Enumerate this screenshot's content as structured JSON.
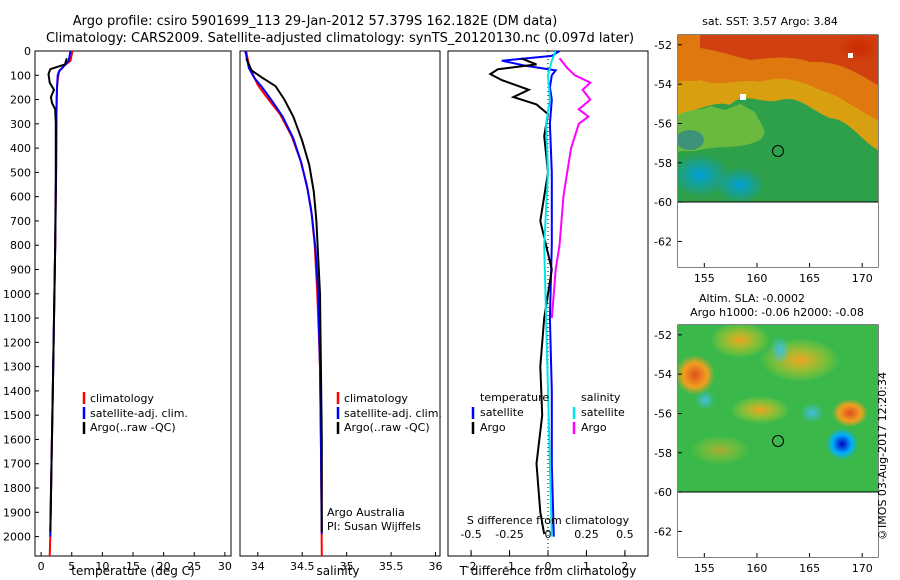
{
  "header": {
    "line1": "Argo profile: csiro 5901699_113 29-Jan-2012 57.379S 162.182E (DM data)",
    "line2": "Climatology: CARS2009. Satellite-adjusted climatology: synTS_20120130.nc (0.097d later)"
  },
  "footer_vertical": "©IMOS 03-Aug-2017 12:20:34",
  "colors": {
    "climatology": "#ff0000",
    "satellite": "#0000ff",
    "argo": "#000000",
    "sat_salinity": "#00e5e5",
    "argo_salinity": "#ff00ff"
  },
  "chart_data": [
    {
      "type": "line",
      "id": "temperature",
      "xlabel": "temperature (deg C)",
      "ylabel": "",
      "xlim": [
        -1,
        31
      ],
      "ylim": [
        2080,
        0
      ],
      "xticks": [
        0,
        5,
        10,
        15,
        20,
        25,
        30
      ],
      "yticks": [
        0,
        100,
        200,
        300,
        400,
        500,
        600,
        700,
        800,
        900,
        1000,
        1100,
        1200,
        1300,
        1400,
        1500,
        1600,
        1700,
        1800,
        1900,
        2000
      ],
      "legend": [
        "climatology",
        "satellite-adj. clim.",
        "Argo(..raw -QC)"
      ],
      "series": [
        {
          "name": "climatology",
          "color": "#ff0000",
          "points": [
            [
              5.1,
              0
            ],
            [
              4.8,
              40
            ],
            [
              3.8,
              60
            ],
            [
              3.0,
              80
            ],
            [
              2.8,
              100
            ],
            [
              2.6,
              150
            ],
            [
              2.55,
              200
            ],
            [
              2.5,
              300
            ],
            [
              2.45,
              500
            ],
            [
              2.3,
              800
            ],
            [
              2.1,
              1100
            ],
            [
              1.9,
              1400
            ],
            [
              1.7,
              1700
            ],
            [
              1.5,
              2000
            ],
            [
              1.4,
              2080
            ]
          ]
        },
        {
          "name": "satellite-adj. clim.",
          "color": "#0000ff",
          "points": [
            [
              4.8,
              0
            ],
            [
              4.5,
              40
            ],
            [
              3.6,
              65
            ],
            [
              2.9,
              85
            ],
            [
              2.7,
              100
            ],
            [
              2.6,
              150
            ],
            [
              2.5,
              250
            ],
            [
              2.45,
              500
            ],
            [
              2.3,
              800
            ],
            [
              2.1,
              1100
            ],
            [
              1.9,
              1400
            ],
            [
              1.7,
              1700
            ],
            [
              1.5,
              2000
            ]
          ]
        },
        {
          "name": "Argo(..raw -QC)",
          "color": "#000000",
          "points": [
            [
              4.2,
              30
            ],
            [
              3.9,
              55
            ],
            [
              1.5,
              75
            ],
            [
              1.2,
              95
            ],
            [
              1.4,
              130
            ],
            [
              2.1,
              160
            ],
            [
              1.6,
              190
            ],
            [
              1.8,
              215
            ],
            [
              2.3,
              240
            ],
            [
              2.4,
              300
            ],
            [
              2.4,
              500
            ],
            [
              2.3,
              800
            ],
            [
              2.1,
              1100
            ],
            [
              1.9,
              1400
            ],
            [
              1.7,
              1700
            ],
            [
              1.5,
              1980
            ]
          ]
        }
      ]
    },
    {
      "type": "line",
      "id": "salinity",
      "xlabel": "salinity",
      "ylabel": "",
      "xlim": [
        33.8,
        36.05
      ],
      "ylim": [
        2080,
        0
      ],
      "xticks": [
        34,
        34.5,
        35,
        35.5,
        36
      ],
      "legend": [
        "climatology",
        "satellite-adj. clim.",
        "Argo(..raw -QC)"
      ],
      "annotation": [
        "Argo Australia",
        "PI: Susan Wijffels"
      ],
      "series": [
        {
          "name": "climatology",
          "color": "#ff0000",
          "points": [
            [
              33.87,
              0
            ],
            [
              33.9,
              60
            ],
            [
              33.95,
              100
            ],
            [
              34.0,
              140
            ],
            [
              34.1,
              190
            ],
            [
              34.25,
              260
            ],
            [
              34.38,
              350
            ],
            [
              34.48,
              450
            ],
            [
              34.55,
              550
            ],
            [
              34.6,
              650
            ],
            [
              34.64,
              800
            ],
            [
              34.67,
              1000
            ],
            [
              34.7,
              1300
            ],
            [
              34.71,
              1600
            ],
            [
              34.72,
              2080
            ]
          ]
        },
        {
          "name": "satellite-adj. clim.",
          "color": "#0000ff",
          "points": [
            [
              33.86,
              0
            ],
            [
              33.9,
              70
            ],
            [
              33.96,
              110
            ],
            [
              34.05,
              150
            ],
            [
              34.15,
              200
            ],
            [
              34.28,
              270
            ],
            [
              34.4,
              360
            ],
            [
              34.49,
              460
            ],
            [
              34.56,
              570
            ],
            [
              34.61,
              680
            ],
            [
              34.65,
              820
            ],
            [
              34.68,
              1000
            ],
            [
              34.7,
              1300
            ],
            [
              34.71,
              1600
            ],
            [
              34.72,
              1990
            ]
          ]
        },
        {
          "name": "Argo(..raw -QC)",
          "color": "#000000",
          "points": [
            [
              33.87,
              30
            ],
            [
              33.93,
              80
            ],
            [
              34.05,
              110
            ],
            [
              34.2,
              145
            ],
            [
              34.3,
              200
            ],
            [
              34.4,
              270
            ],
            [
              34.5,
              370
            ],
            [
              34.58,
              470
            ],
            [
              34.63,
              580
            ],
            [
              34.66,
              700
            ],
            [
              34.68,
              850
            ],
            [
              34.7,
              1000
            ],
            [
              34.71,
              1300
            ],
            [
              34.72,
              1600
            ],
            [
              34.72,
              1980
            ]
          ]
        }
      ]
    },
    {
      "type": "line",
      "id": "differences",
      "xlabel": "T difference from climatology",
      "xlabel_top": "S difference from climatology",
      "xlim": [
        -2.6,
        2.6
      ],
      "ylim": [
        2080,
        0
      ],
      "xticks": [
        -2,
        -1,
        0,
        1,
        2
      ],
      "xticks_labels": [
        "-2",
        "-1",
        "0",
        "1",
        "2"
      ],
      "s_ticks": [
        -0.5,
        -0.25,
        0,
        0.25,
        0.5
      ],
      "s_ticks_labels": [
        "-0.5",
        "-0.25",
        "0",
        "0.25",
        "0.5"
      ],
      "legend_temperature_title": "temperature",
      "legend_salinity_title": "salinity",
      "legend_temperature": [
        "satellite",
        "Argo"
      ],
      "legend_salinity": [
        "satellite",
        "Argo"
      ],
      "series": [
        {
          "name": "temperature satellite",
          "color": "#0000ff",
          "points": [
            [
              0.3,
              0
            ],
            [
              0.1,
              20
            ],
            [
              -1.2,
              40
            ],
            [
              -0.6,
              60
            ],
            [
              0.2,
              80
            ],
            [
              0.1,
              100
            ],
            [
              0.05,
              150
            ],
            [
              0.1,
              200
            ],
            [
              0.05,
              300
            ],
            [
              0.1,
              500
            ],
            [
              0.1,
              800
            ],
            [
              0.05,
              1100
            ],
            [
              0.1,
              1400
            ],
            [
              0.1,
              1700
            ],
            [
              0.15,
              2000
            ]
          ]
        },
        {
          "name": "temperature Argo",
          "color": "#000000",
          "points": [
            [
              -0.7,
              30
            ],
            [
              -0.3,
              55
            ],
            [
              -1.3,
              75
            ],
            [
              -1.5,
              95
            ],
            [
              -1.2,
              120
            ],
            [
              -0.5,
              160
            ],
            [
              -0.9,
              190
            ],
            [
              -0.3,
              220
            ],
            [
              0.0,
              260
            ],
            [
              -0.1,
              350
            ],
            [
              0.0,
              500
            ],
            [
              -0.2,
              700
            ],
            [
              0.1,
              900
            ],
            [
              -0.1,
              1100
            ],
            [
              -0.2,
              1300
            ],
            [
              -0.15,
              1500
            ],
            [
              -0.3,
              1700
            ],
            [
              -0.2,
              1900
            ],
            [
              -0.1,
              1990
            ]
          ]
        },
        {
          "name": "salinity satellite",
          "color": "#00e5e5",
          "points": [
            [
              0.2,
              0
            ],
            [
              0.1,
              40
            ],
            [
              0.0,
              100
            ],
            [
              0.05,
              200
            ],
            [
              -0.05,
              300
            ],
            [
              0.0,
              500
            ],
            [
              -0.1,
              800
            ],
            [
              -0.05,
              1100
            ],
            [
              0.0,
              1400
            ],
            [
              0.05,
              1700
            ],
            [
              0.1,
              2000
            ]
          ]
        },
        {
          "name": "salinity Argo",
          "color": "#ff00ff",
          "points": [
            [
              0.3,
              30
            ],
            [
              0.5,
              70
            ],
            [
              0.7,
              100
            ],
            [
              1.1,
              130
            ],
            [
              0.9,
              160
            ],
            [
              1.1,
              200
            ],
            [
              0.8,
              240
            ],
            [
              1.05,
              270
            ],
            [
              0.8,
              300
            ],
            [
              0.6,
              400
            ],
            [
              0.5,
              500
            ],
            [
              0.4,
              600
            ],
            [
              0.35,
              700
            ],
            [
              0.3,
              800
            ],
            [
              0.2,
              900
            ],
            [
              0.15,
              1000
            ],
            [
              0.1,
              1100
            ]
          ]
        }
      ]
    },
    {
      "type": "heatmap",
      "id": "sst-map",
      "title": "sat. SST: 3.57 Argo: 3.84",
      "xlim": [
        152.5,
        171.5
      ],
      "ylim": [
        -63.3,
        -51.5
      ],
      "xticks": [
        155,
        160,
        165,
        170
      ],
      "yticks": [
        -52,
        -54,
        -56,
        -58,
        -60,
        -62
      ],
      "ytick_labels": [
        "-52",
        "-54",
        "-56",
        "-58",
        "-60",
        "-62"
      ],
      "marker": [
        162.182,
        -57.379
      ]
    },
    {
      "type": "heatmap",
      "id": "sla-map",
      "title": "Altim. SLA: -0.0002",
      "subtitle": "Argo h1000: -0.06 h2000: -0.08",
      "xlim": [
        152.5,
        171.5
      ],
      "ylim": [
        -63.3,
        -51.5
      ],
      "xticks": [
        155,
        160,
        165,
        170
      ],
      "yticks": [
        -52,
        -54,
        -56,
        -58,
        -60,
        -62
      ],
      "ytick_labels": [
        "-52",
        "-54",
        "-56",
        "-58",
        "-60",
        "-62"
      ],
      "marker": [
        162.182,
        -57.379
      ]
    }
  ]
}
